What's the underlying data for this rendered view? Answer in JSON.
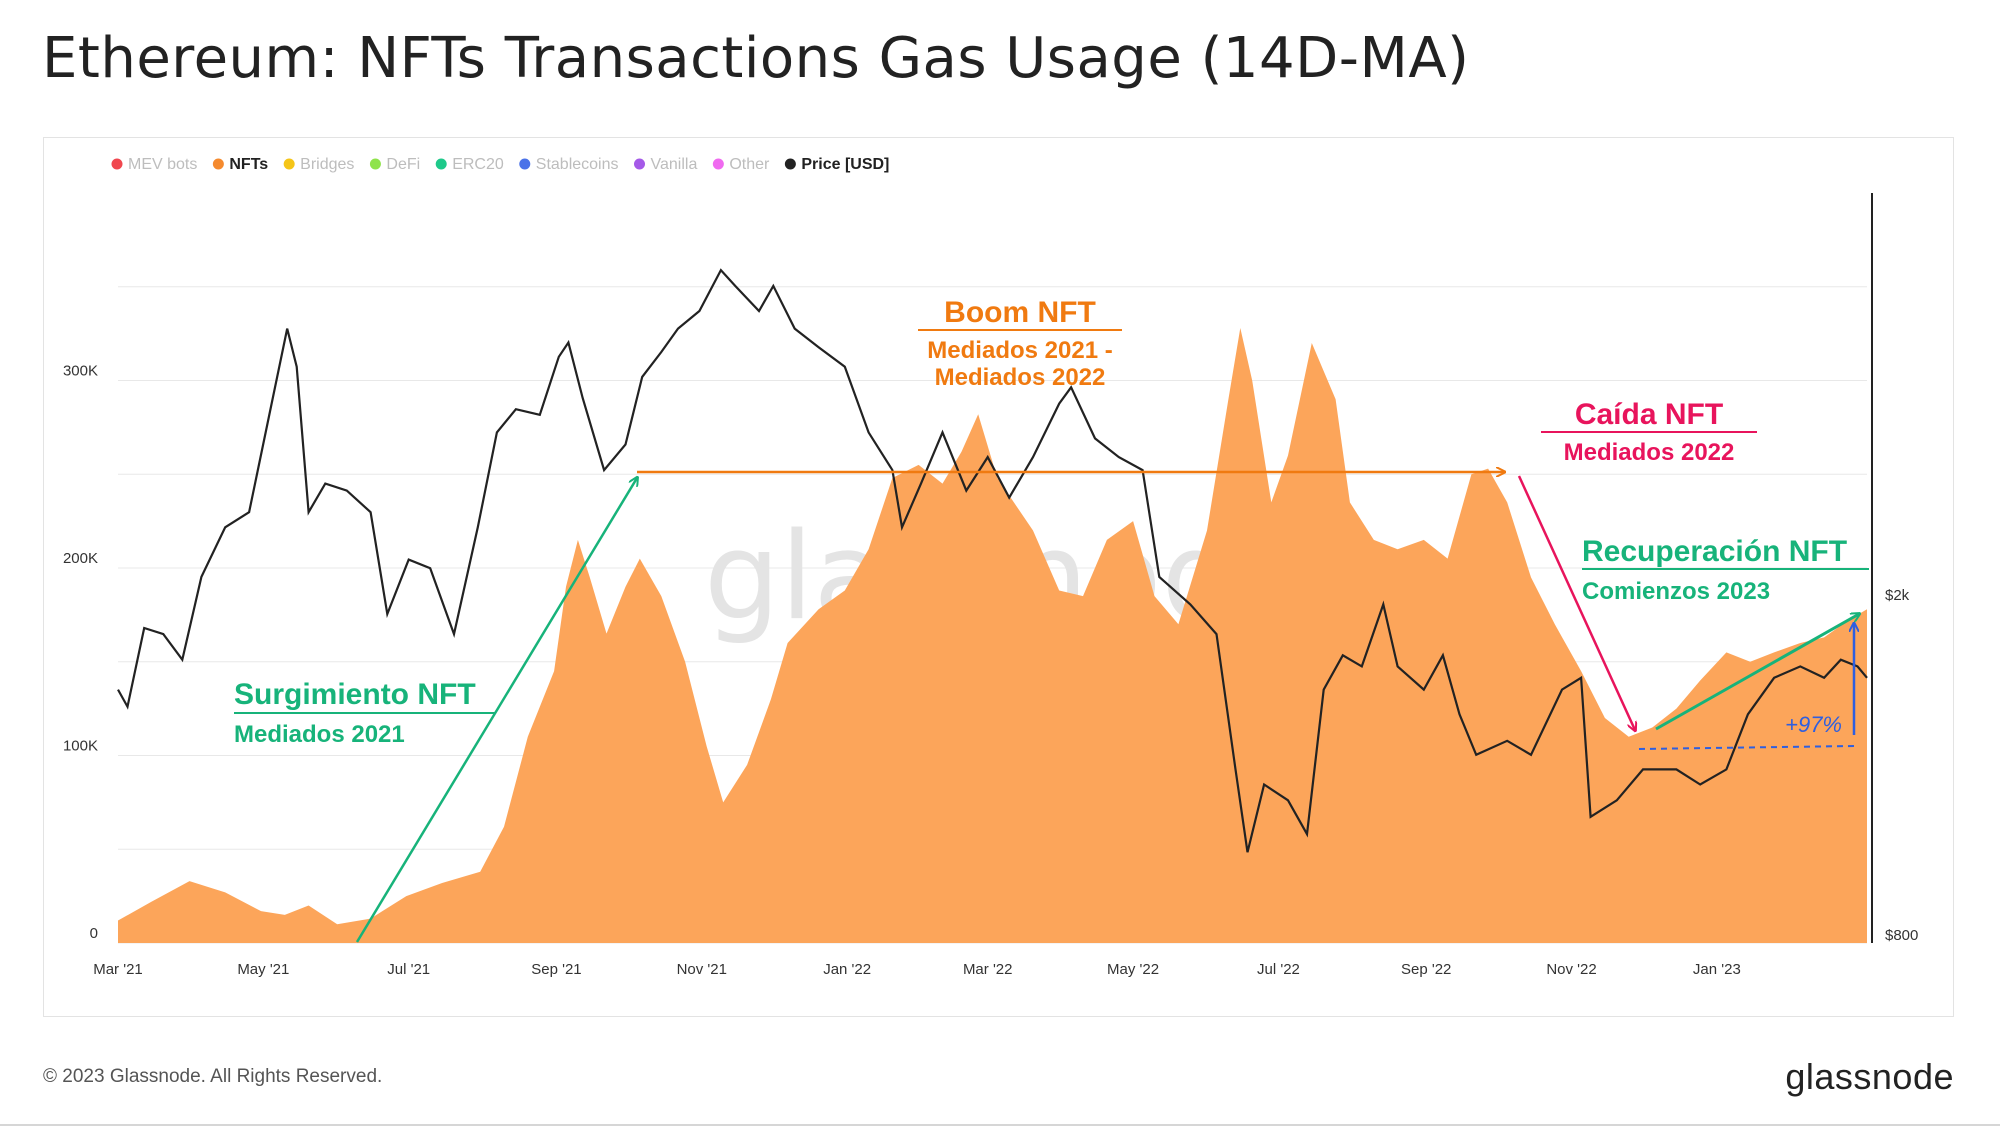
{
  "header": {
    "title": "Ethereum: NFTs Transactions Gas Usage (14D-MA)"
  },
  "footer": {
    "copyright": "© 2023 Glassnode. All Rights Reserved.",
    "brand": "glassnode"
  },
  "watermark": "glassnode",
  "colors": {
    "nfts": "#fca55a",
    "price": "#222222",
    "grid": "#e8e8e8",
    "orange": "#f07a10",
    "pink": "#e8145c",
    "green": "#17b37a",
    "blue": "#2e5fe0"
  },
  "legend": [
    {
      "label": "MEV bots",
      "color": "#f0474f",
      "active": false
    },
    {
      "label": "NFTs",
      "color": "#f58a2e",
      "active": true
    },
    {
      "label": "Bridges",
      "color": "#f5c518",
      "active": false
    },
    {
      "label": "DeFi",
      "color": "#8fe34a",
      "active": false
    },
    {
      "label": "ERC20",
      "color": "#1ec98a",
      "active": false
    },
    {
      "label": "Stablecoins",
      "color": "#4a72e8",
      "active": false
    },
    {
      "label": "Vanilla",
      "color": "#a55ae8",
      "active": false
    },
    {
      "label": "Other",
      "color": "#f06af0",
      "active": false
    },
    {
      "label": "Price [USD]",
      "color": "#222222",
      "active": true
    }
  ],
  "annotations": {
    "boom": {
      "title": "Boom NFT",
      "sub1": "Mediados 2021 -",
      "sub2": "Mediados 2022"
    },
    "caida": {
      "title": "Caída NFT",
      "sub": "Mediados 2022"
    },
    "recup": {
      "title": "Recuperación NFT",
      "sub": "Comienzos 2023"
    },
    "surg": {
      "title": "Surgimiento NFT",
      "sub": "Mediados 2021"
    },
    "pct": "+97%"
  },
  "chart_data": {
    "type": "area",
    "x_ticks": [
      "Mar '21",
      "May '21",
      "Jul '21",
      "Sep '21",
      "Nov '21",
      "Jan '22",
      "Mar '22",
      "May '22",
      "Jul '22",
      "Sep '22",
      "Nov '22",
      "Jan '23"
    ],
    "y_left_ticks": [
      "0",
      "100K",
      "200K",
      "300K"
    ],
    "y_right_ticks": [
      "$800",
      "$2k"
    ],
    "y_left_range": [
      0,
      400000
    ],
    "x_range": [
      "2021-03-01",
      "2023-03-05"
    ],
    "series": [
      {
        "name": "NFTs",
        "axis": "left",
        "points": [
          [
            "2021-03-01",
            12000
          ],
          [
            "2021-03-15",
            22000
          ],
          [
            "2021-03-31",
            33000
          ],
          [
            "2021-04-15",
            27000
          ],
          [
            "2021-04-30",
            17000
          ],
          [
            "2021-05-10",
            15000
          ],
          [
            "2021-05-20",
            20000
          ],
          [
            "2021-06-01",
            10000
          ],
          [
            "2021-06-15",
            13000
          ],
          [
            "2021-06-30",
            25000
          ],
          [
            "2021-07-15",
            32000
          ],
          [
            "2021-07-31",
            38000
          ],
          [
            "2021-08-10",
            62000
          ],
          [
            "2021-08-20",
            110000
          ],
          [
            "2021-08-31",
            145000
          ],
          [
            "2021-09-05",
            190000
          ],
          [
            "2021-09-10",
            215000
          ],
          [
            "2021-09-15",
            195000
          ],
          [
            "2021-09-22",
            165000
          ],
          [
            "2021-09-30",
            190000
          ],
          [
            "2021-10-06",
            205000
          ],
          [
            "2021-10-15",
            185000
          ],
          [
            "2021-10-25",
            150000
          ],
          [
            "2021-11-03",
            105000
          ],
          [
            "2021-11-10",
            75000
          ],
          [
            "2021-11-20",
            95000
          ],
          [
            "2021-11-30",
            130000
          ],
          [
            "2021-12-07",
            160000
          ],
          [
            "2021-12-20",
            178000
          ],
          [
            "2021-12-31",
            188000
          ],
          [
            "2022-01-10",
            210000
          ],
          [
            "2022-01-20",
            248000
          ],
          [
            "2022-01-31",
            255000
          ],
          [
            "2022-02-10",
            245000
          ],
          [
            "2022-02-18",
            262000
          ],
          [
            "2022-02-25",
            282000
          ],
          [
            "2022-03-05",
            248000
          ],
          [
            "2022-03-12",
            235000
          ],
          [
            "2022-03-20",
            220000
          ],
          [
            "2022-03-31",
            188000
          ],
          [
            "2022-04-10",
            185000
          ],
          [
            "2022-04-20",
            215000
          ],
          [
            "2022-05-01",
            225000
          ],
          [
            "2022-05-10",
            185000
          ],
          [
            "2022-05-20",
            170000
          ],
          [
            "2022-06-01",
            220000
          ],
          [
            "2022-06-10",
            290000
          ],
          [
            "2022-06-15",
            328000
          ],
          [
            "2022-06-20",
            300000
          ],
          [
            "2022-06-28",
            235000
          ],
          [
            "2022-07-05",
            260000
          ],
          [
            "2022-07-15",
            320000
          ],
          [
            "2022-07-25",
            290000
          ],
          [
            "2022-07-31",
            235000
          ],
          [
            "2022-08-10",
            215000
          ],
          [
            "2022-08-20",
            210000
          ],
          [
            "2022-08-31",
            215000
          ],
          [
            "2022-09-10",
            205000
          ],
          [
            "2022-09-20",
            250000
          ],
          [
            "2022-09-27",
            253000
          ],
          [
            "2022-10-05",
            235000
          ],
          [
            "2022-10-15",
            195000
          ],
          [
            "2022-10-25",
            170000
          ],
          [
            "2022-11-05",
            145000
          ],
          [
            "2022-11-15",
            120000
          ],
          [
            "2022-11-25",
            110000
          ],
          [
            "2022-12-05",
            115000
          ],
          [
            "2022-12-15",
            125000
          ],
          [
            "2022-12-25",
            140000
          ],
          [
            "2023-01-05",
            155000
          ],
          [
            "2023-01-15",
            150000
          ],
          [
            "2023-01-25",
            155000
          ],
          [
            "2023-02-05",
            160000
          ],
          [
            "2023-02-15",
            163000
          ],
          [
            "2023-02-25",
            172000
          ],
          [
            "2023-03-05",
            178000
          ]
        ]
      },
      {
        "name": "Price [USD]",
        "axis": "right",
        "points": [
          [
            "2021-03-01",
            1550
          ],
          [
            "2021-03-05",
            1480
          ],
          [
            "2021-03-12",
            1830
          ],
          [
            "2021-03-20",
            1800
          ],
          [
            "2021-03-28",
            1680
          ],
          [
            "2021-04-05",
            2100
          ],
          [
            "2021-04-15",
            2400
          ],
          [
            "2021-04-25",
            2500
          ],
          [
            "2021-05-03",
            3200
          ],
          [
            "2021-05-11",
            4100
          ],
          [
            "2021-05-15",
            3700
          ],
          [
            "2021-05-20",
            2500
          ],
          [
            "2021-05-27",
            2700
          ],
          [
            "2021-06-05",
            2650
          ],
          [
            "2021-06-15",
            2500
          ],
          [
            "2021-06-22",
            1900
          ],
          [
            "2021-07-01",
            2200
          ],
          [
            "2021-07-10",
            2150
          ],
          [
            "2021-07-20",
            1800
          ],
          [
            "2021-07-30",
            2400
          ],
          [
            "2021-08-07",
            3100
          ],
          [
            "2021-08-15",
            3300
          ],
          [
            "2021-08-25",
            3250
          ],
          [
            "2021-09-02",
            3800
          ],
          [
            "2021-09-06",
            3950
          ],
          [
            "2021-09-12",
            3400
          ],
          [
            "2021-09-21",
            2800
          ],
          [
            "2021-09-30",
            3000
          ],
          [
            "2021-10-07",
            3600
          ],
          [
            "2021-10-15",
            3850
          ],
          [
            "2021-10-22",
            4100
          ],
          [
            "2021-10-31",
            4300
          ],
          [
            "2021-11-09",
            4800
          ],
          [
            "2021-11-15",
            4600
          ],
          [
            "2021-11-25",
            4300
          ],
          [
            "2021-12-01",
            4600
          ],
          [
            "2021-12-10",
            4100
          ],
          [
            "2021-12-20",
            3900
          ],
          [
            "2021-12-31",
            3700
          ],
          [
            "2022-01-10",
            3100
          ],
          [
            "2022-01-20",
            2800
          ],
          [
            "2022-01-24",
            2400
          ],
          [
            "2022-02-01",
            2700
          ],
          [
            "2022-02-10",
            3100
          ],
          [
            "2022-02-20",
            2650
          ],
          [
            "2022-03-01",
            2900
          ],
          [
            "2022-03-10",
            2600
          ],
          [
            "2022-03-20",
            2900
          ],
          [
            "2022-03-31",
            3350
          ],
          [
            "2022-04-05",
            3500
          ],
          [
            "2022-04-15",
            3050
          ],
          [
            "2022-04-25",
            2900
          ],
          [
            "2022-05-05",
            2800
          ],
          [
            "2022-05-12",
            2100
          ],
          [
            "2022-05-25",
            1950
          ],
          [
            "2022-06-05",
            1800
          ],
          [
            "2022-06-13",
            1250
          ],
          [
            "2022-06-18",
            1000
          ],
          [
            "2022-06-25",
            1200
          ],
          [
            "2022-07-05",
            1150
          ],
          [
            "2022-07-13",
            1050
          ],
          [
            "2022-07-20",
            1550
          ],
          [
            "2022-07-28",
            1700
          ],
          [
            "2022-08-05",
            1650
          ],
          [
            "2022-08-14",
            1950
          ],
          [
            "2022-08-20",
            1650
          ],
          [
            "2022-08-31",
            1550
          ],
          [
            "2022-09-08",
            1700
          ],
          [
            "2022-09-15",
            1450
          ],
          [
            "2022-09-22",
            1300
          ],
          [
            "2022-10-05",
            1350
          ],
          [
            "2022-10-15",
            1300
          ],
          [
            "2022-10-28",
            1550
          ],
          [
            "2022-11-05",
            1600
          ],
          [
            "2022-11-09",
            1100
          ],
          [
            "2022-11-20",
            1150
          ],
          [
            "2022-12-01",
            1250
          ],
          [
            "2022-12-15",
            1250
          ],
          [
            "2022-12-25",
            1200
          ],
          [
            "2023-01-05",
            1250
          ],
          [
            "2023-01-14",
            1450
          ],
          [
            "2023-01-25",
            1600
          ],
          [
            "2023-02-05",
            1650
          ],
          [
            "2023-02-15",
            1600
          ],
          [
            "2023-02-22",
            1680
          ],
          [
            "2023-03-01",
            1650
          ],
          [
            "2023-03-05",
            1600
          ]
        ]
      }
    ]
  }
}
